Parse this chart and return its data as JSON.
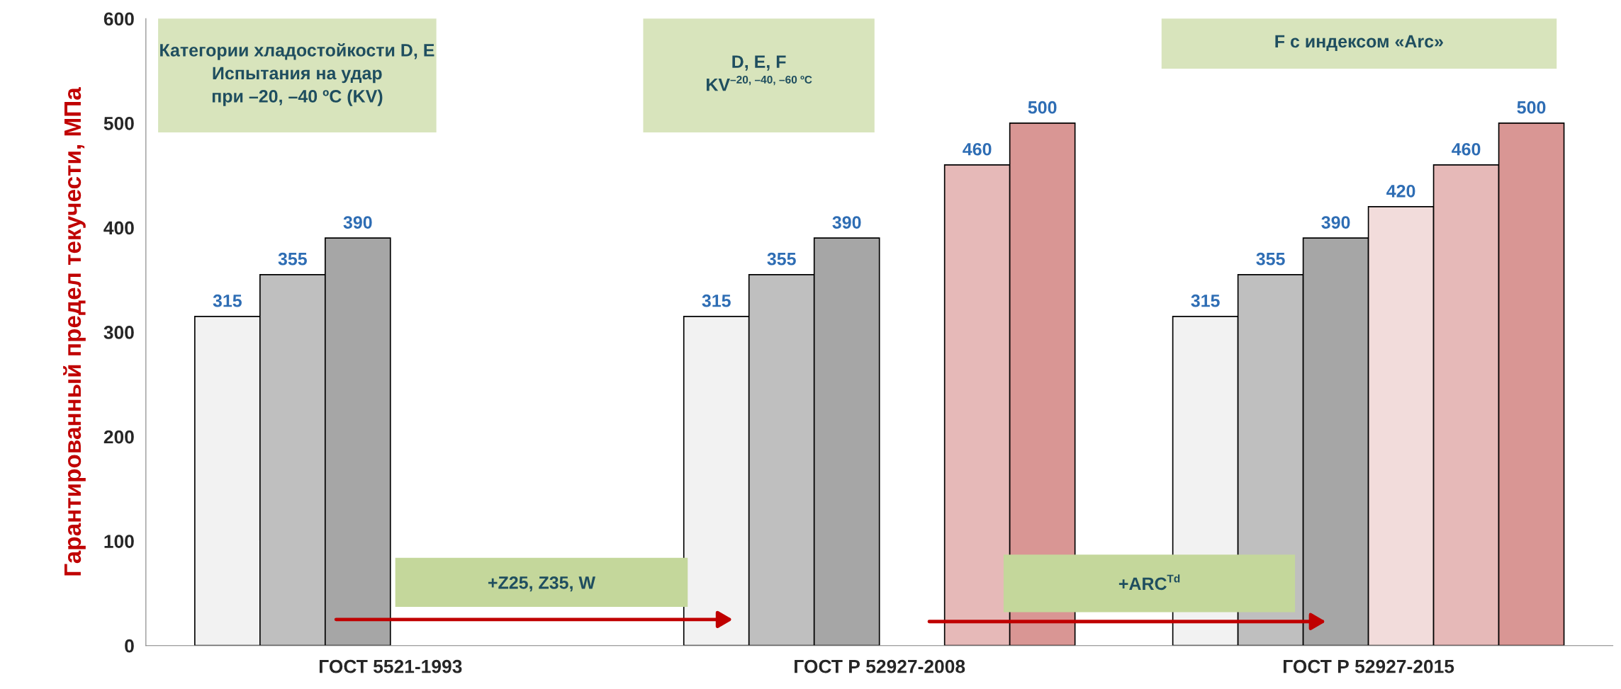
{
  "chart_data": {
    "type": "bar",
    "ylabel": "Гарантированный предел текучести, МПа",
    "categories": [
      "ГОСТ 5521-1993",
      "ГОСТ Р 52927-2008",
      "ГОСТ Р 52927-2015"
    ],
    "series": [
      {
        "color": "#f2f2f2",
        "values": [
          315,
          315,
          315
        ]
      },
      {
        "color": "#bfbfbf",
        "values": [
          355,
          355,
          355
        ]
      },
      {
        "color": "#a6a6a6",
        "values": [
          390,
          390,
          390
        ]
      },
      {
        "color": "#f2dcdb",
        "values": [
          null,
          null,
          420
        ]
      },
      {
        "color": "#e6b9b8",
        "values": [
          null,
          460,
          460
        ]
      },
      {
        "color": "#d99694",
        "values": [
          null,
          500,
          500
        ]
      }
    ],
    "ylim": [
      0,
      600
    ],
    "yticks": [
      0,
      100,
      200,
      300,
      400,
      500,
      600
    ],
    "grid": false,
    "data_labels": true,
    "annotations": [
      "Категории хладостойкости D, E\nИспытания на удар\nпри –20, –40 ºС (KV)",
      "D, E, F\nKV$^{–20, –40, –60 ºС}$",
      "F с индексом «Arc»",
      "+Z25, Z35, W",
      "+ARC$^{Td}$"
    ]
  }
}
